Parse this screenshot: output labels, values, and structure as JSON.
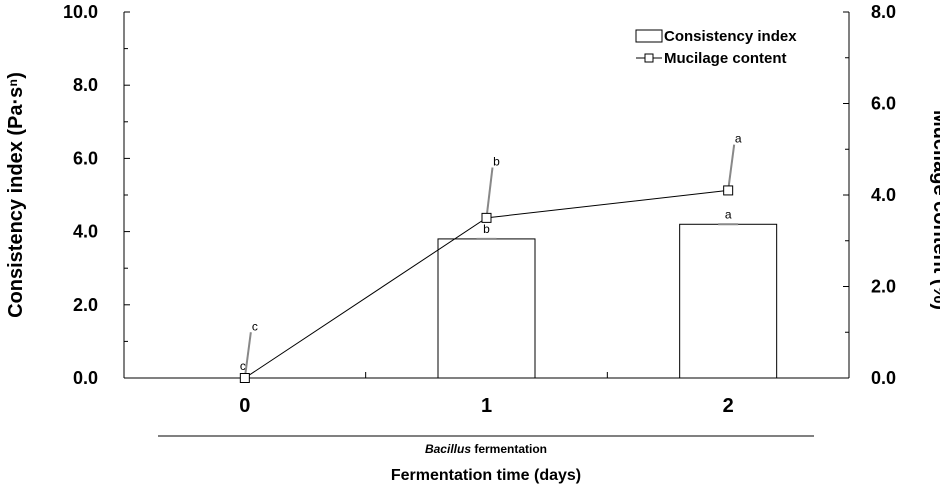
{
  "chart_data": {
    "type": "bar",
    "categories": [
      "0",
      "1",
      "2"
    ],
    "xlabel": "Fermentation time (days)",
    "group_label_italic": "Bacillus",
    "group_label_rest": " fermentation",
    "y_left": {
      "label": "Consistency index (Pa·sⁿ)",
      "ylim": [
        0,
        10
      ],
      "ticks": [
        "0.0",
        "2.0",
        "4.0",
        "6.0",
        "8.0",
        "10.0"
      ]
    },
    "y_right": {
      "label": "Mucilage content (%)",
      "ylim": [
        0,
        8
      ],
      "ticks": [
        "0.0",
        "2.0",
        "4.0",
        "6.0",
        "8.0"
      ]
    },
    "series": [
      {
        "name": "Consistency index",
        "kind": "bar",
        "axis": "left",
        "values": [
          0.0,
          3.8,
          4.2
        ],
        "sig": [
          "c",
          "b",
          "a"
        ]
      },
      {
        "name": "Mucilage content",
        "kind": "line",
        "axis": "right",
        "values": [
          0.0,
          3.5,
          4.1
        ],
        "error_upper": [
          1.0,
          4.6,
          5.1
        ],
        "sig": [
          "c",
          "b",
          "a"
        ]
      }
    ],
    "legend_position": "top-right",
    "grid": false
  }
}
